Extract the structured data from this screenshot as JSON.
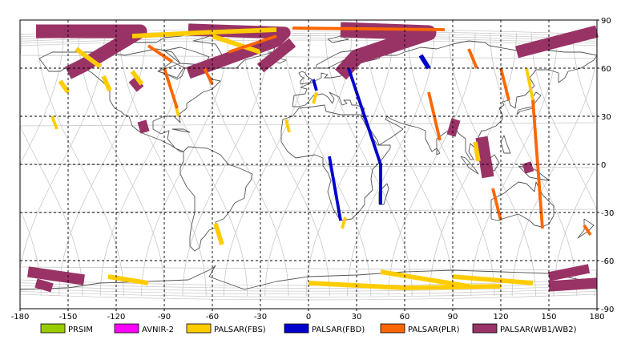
{
  "chart_data": {
    "type": "map",
    "projection": "equirectangular",
    "lon_range": [
      -180,
      180
    ],
    "lat_range": [
      -90,
      90
    ],
    "x_ticks": [
      -180,
      -150,
      -120,
      -90,
      -60,
      -30,
      0,
      30,
      60,
      90,
      120,
      150,
      180
    ],
    "y_ticks": [
      90,
      60,
      30,
      0,
      -30,
      -60,
      -90
    ],
    "grid": "dashed",
    "legend_position": "bottom",
    "legend": [
      {
        "label": "PRSIM",
        "color": "#99cc00"
      },
      {
        "label": "AVNIR-2",
        "color": "#ff00ff"
      },
      {
        "label": "PALSAR(FBS)",
        "color": "#ffcc00"
      },
      {
        "label": "PALSAR(FBD)",
        "color": "#0000cc"
      },
      {
        "label": "PALSAR(PLR)",
        "color": "#ff6600"
      },
      {
        "label": "PALSAR(WB1/WB2)",
        "color": "#993366"
      }
    ],
    "swaths": [
      {
        "mode": "PALSAR(WB1/WB2)",
        "path": [
          [
            -170,
            83
          ],
          [
            -105,
            83
          ],
          [
            -140,
            62
          ],
          [
            -150,
            57
          ]
        ],
        "width": 9
      },
      {
        "mode": "PALSAR(WB1/WB2)",
        "path": [
          [
            -75,
            84
          ],
          [
            -15,
            82
          ],
          [
            -20,
            77
          ],
          [
            -75,
            57
          ]
        ],
        "width": 8
      },
      {
        "mode": "PALSAR(WB1/WB2)",
        "path": [
          [
            -10,
            76
          ],
          [
            -30,
            60
          ]
        ],
        "width": 7
      },
      {
        "mode": "PALSAR(WB1/WB2)",
        "path": [
          [
            20,
            84
          ],
          [
            75,
            82
          ],
          [
            30,
            67
          ],
          [
            20,
            56
          ]
        ],
        "width": 10
      },
      {
        "mode": "PALSAR(WB1/WB2)",
        "path": [
          [
            180,
            83
          ],
          [
            130,
            70
          ]
        ],
        "width": 8
      },
      {
        "mode": "PALSAR(WB1/WB2)",
        "path": [
          [
            -110,
            53
          ],
          [
            -105,
            47
          ]
        ],
        "width": 6
      },
      {
        "mode": "PALSAR(WB1/WB2)",
        "path": [
          [
            -104,
            27
          ],
          [
            -102,
            20
          ]
        ],
        "width": 6
      },
      {
        "mode": "PALSAR(WB1/WB2)",
        "path": [
          [
            92,
            28
          ],
          [
            89,
            18
          ]
        ],
        "width": 6
      },
      {
        "mode": "PALSAR(WB1/WB2)",
        "path": [
          [
            108,
            17
          ],
          [
            112,
            -8
          ]
        ],
        "width": 8
      },
      {
        "mode": "PALSAR(WB1/WB2)",
        "path": [
          [
            136,
            1
          ],
          [
            138,
            -5
          ]
        ],
        "width": 6
      },
      {
        "mode": "PALSAR(WB1/WB2)",
        "path": [
          [
            -175,
            -67
          ],
          [
            -140,
            -72
          ]
        ],
        "width": 7
      },
      {
        "mode": "PALSAR(WB1/WB2)",
        "path": [
          [
            -170,
            -74
          ],
          [
            -160,
            -77
          ]
        ],
        "width": 6
      },
      {
        "mode": "PALSAR(WB1/WB2)",
        "path": [
          [
            150,
            -70
          ],
          [
            175,
            -65
          ]
        ],
        "width": 6
      },
      {
        "mode": "PALSAR(WB1/WB2)",
        "path": [
          [
            150,
            -76
          ],
          [
            180,
            -74
          ]
        ],
        "width": 7
      },
      {
        "mode": "PALSAR(FBS)",
        "path": [
          [
            -145,
            72
          ],
          [
            -130,
            61
          ]
        ],
        "width": 3
      },
      {
        "mode": "PALSAR(FBS)",
        "path": [
          [
            -110,
            58
          ],
          [
            -104,
            50
          ]
        ],
        "width": 3
      },
      {
        "mode": "PALSAR(FBS)",
        "path": [
          [
            -20,
            84
          ],
          [
            -70,
            82
          ],
          [
            -110,
            80
          ]
        ],
        "width": 3
      },
      {
        "mode": "PALSAR(FBS)",
        "path": [
          [
            -60,
            80
          ],
          [
            -30,
            70
          ]
        ],
        "width": 3
      },
      {
        "mode": "PALSAR(FBS)",
        "path": [
          [
            -155,
            52
          ],
          [
            -150,
            45
          ]
        ],
        "width": 3
      },
      {
        "mode": "PALSAR(FBS)",
        "path": [
          [
            -128,
            55
          ],
          [
            -124,
            46
          ]
        ],
        "width": 3
      },
      {
        "mode": "PALSAR(FBS)",
        "path": [
          [
            -83,
            37
          ],
          [
            -81,
            30
          ]
        ],
        "width": 2
      },
      {
        "mode": "PALSAR(FBS)",
        "path": [
          [
            -58,
            -37
          ],
          [
            -54,
            -50
          ]
        ],
        "width": 3
      },
      {
        "mode": "PALSAR(FBS)",
        "path": [
          [
            -14,
            28
          ],
          [
            -12,
            20
          ]
        ],
        "width": 2
      },
      {
        "mode": "PALSAR(FBS)",
        "path": [
          [
            5,
            45
          ],
          [
            3,
            38
          ]
        ],
        "width": 2
      },
      {
        "mode": "PALSAR(FBS)",
        "path": [
          [
            23,
            -33
          ],
          [
            21,
            -40
          ]
        ],
        "width": 2
      },
      {
        "mode": "PALSAR(FBS)",
        "path": [
          [
            136,
            60
          ],
          [
            140,
            40
          ]
        ],
        "width": 2
      },
      {
        "mode": "PALSAR(FBS)",
        "path": [
          [
            104,
            14
          ],
          [
            106,
            2
          ]
        ],
        "width": 3
      },
      {
        "mode": "PALSAR(FBS)",
        "path": [
          [
            -160,
            30
          ],
          [
            -157,
            22
          ]
        ],
        "width": 2
      },
      {
        "mode": "PALSAR(FBS)",
        "path": [
          [
            -125,
            -70
          ],
          [
            -100,
            -74
          ]
        ],
        "width": 3
      },
      {
        "mode": "PALSAR(FBS)",
        "path": [
          [
            0,
            -74
          ],
          [
            60,
            -77
          ],
          [
            120,
            -76
          ]
        ],
        "width": 3
      },
      {
        "mode": "PALSAR(FBS)",
        "path": [
          [
            45,
            -67
          ],
          [
            100,
            -76
          ]
        ],
        "width": 3
      },
      {
        "mode": "PALSAR(FBS)",
        "path": [
          [
            90,
            -70
          ],
          [
            140,
            -74
          ]
        ],
        "width": 3
      },
      {
        "mode": "PALSAR(FBD)",
        "path": [
          [
            25,
            60
          ],
          [
            45,
            0
          ],
          [
            45,
            -25
          ]
        ],
        "width": 2
      },
      {
        "mode": "PALSAR(FBD)",
        "path": [
          [
            13,
            5
          ],
          [
            20,
            -35
          ]
        ],
        "width": 2
      },
      {
        "mode": "PALSAR(FBD)",
        "path": [
          [
            3,
            53
          ],
          [
            5,
            46
          ]
        ],
        "width": 2
      },
      {
        "mode": "PALSAR(FBD)",
        "path": [
          [
            70,
            68
          ],
          [
            75,
            60
          ]
        ],
        "width": 3
      },
      {
        "mode": "PALSAR(PLR)",
        "path": [
          [
            -10,
            85
          ],
          [
            85,
            84
          ]
        ],
        "width": 2
      },
      {
        "mode": "PALSAR(PLR)",
        "path": [
          [
            -100,
            74
          ],
          [
            -85,
            64
          ]
        ],
        "width": 2
      },
      {
        "mode": "PALSAR(PLR)",
        "path": [
          [
            -90,
            60
          ],
          [
            -82,
            35
          ]
        ],
        "width": 2
      },
      {
        "mode": "PALSAR(PLR)",
        "path": [
          [
            -65,
            60
          ],
          [
            -60,
            50
          ]
        ],
        "width": 2
      },
      {
        "mode": "PALSAR(PLR)",
        "path": [
          [
            100,
            72
          ],
          [
            105,
            60
          ]
        ],
        "width": 2
      },
      {
        "mode": "PALSAR(PLR)",
        "path": [
          [
            120,
            60
          ],
          [
            125,
            40
          ]
        ],
        "width": 2
      },
      {
        "mode": "PALSAR(PLR)",
        "path": [
          [
            75,
            45
          ],
          [
            82,
            15
          ]
        ],
        "width": 2
      },
      {
        "mode": "PALSAR(PLR)",
        "path": [
          [
            140,
            40
          ],
          [
            146,
            -40
          ]
        ],
        "width": 2
      },
      {
        "mode": "PALSAR(PLR)",
        "path": [
          [
            115,
            -15
          ],
          [
            120,
            -35
          ]
        ],
        "width": 2
      },
      {
        "mode": "PALSAR(PLR)",
        "path": [
          [
            172,
            -38
          ],
          [
            176,
            -44
          ]
        ],
        "width": 2
      },
      {
        "mode": "PALSAR(PLR)",
        "path": [
          [
            -20,
            80
          ],
          [
            -50,
            70
          ]
        ],
        "width": 2
      }
    ]
  },
  "legend_items": [
    {
      "label": "PRSIM",
      "color": "#99cc00"
    },
    {
      "label": "AVNIR-2",
      "color": "#ff00ff"
    },
    {
      "label": "PALSAR(FBS)",
      "color": "#ffcc00"
    },
    {
      "label": "PALSAR(FBD)",
      "color": "#0000cc"
    },
    {
      "label": "PALSAR(PLR)",
      "color": "#ff6600"
    },
    {
      "label": "PALSAR(WB1/WB2)",
      "color": "#993366"
    }
  ],
  "colors": {
    "grid": "#000000",
    "coast": "#555555",
    "orbit": "#c8c8c8",
    "frame": "#000000"
  }
}
